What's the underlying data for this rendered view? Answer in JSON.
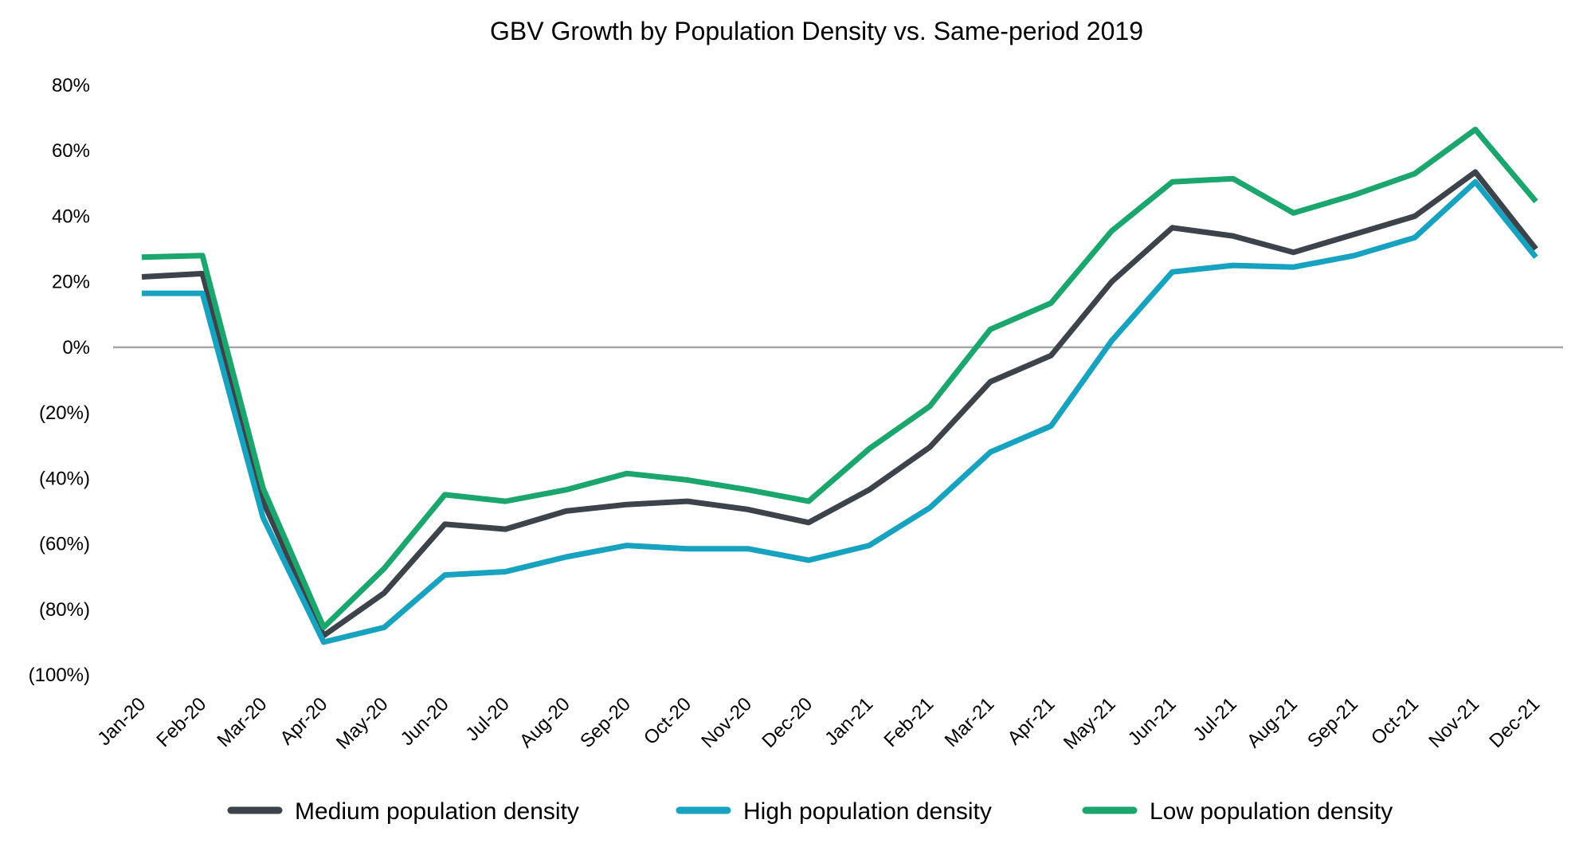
{
  "chart_data": {
    "type": "line",
    "title": "GBV Growth by Population Density vs. Same-period 2019",
    "xlabel": "",
    "ylabel": "",
    "ylim": [
      -100,
      80
    ],
    "yticks": [
      80,
      60,
      40,
      20,
      0,
      -20,
      -40,
      -60,
      -80,
      -100
    ],
    "ytick_labels": [
      "80%",
      "60%",
      "40%",
      "20%",
      "0%",
      "(20%)",
      "(40%)",
      "(60%)",
      "(80%)",
      "(100%)"
    ],
    "grid": false,
    "zero_line": true,
    "legend_position": "bottom",
    "categories": [
      "Jan-20",
      "Feb-20",
      "Mar-20",
      "Apr-20",
      "May-20",
      "Jun-20",
      "Jul-20",
      "Aug-20",
      "Sep-20",
      "Oct-20",
      "Nov-20",
      "Dec-20",
      "Jan-21",
      "Feb-21",
      "Mar-21",
      "Apr-21",
      "May-21",
      "Jun-21",
      "Jul-21",
      "Aug-21",
      "Sep-21",
      "Oct-21",
      "Nov-21",
      "Dec-21"
    ],
    "series": [
      {
        "name": "Medium population density",
        "color": "#3c434b",
        "values": [
          21.5,
          22.5,
          -47,
          -88,
          -75,
          -54,
          -55.5,
          -50,
          -48,
          -47,
          -49.5,
          -53.5,
          -43.5,
          -30.5,
          -10.5,
          -2.5,
          20,
          36.5,
          34,
          29,
          34.5,
          40,
          53.5,
          30
        ]
      },
      {
        "name": "High population density",
        "color": "#17a2c0",
        "values": [
          16.5,
          16.5,
          -52,
          -90,
          -85.5,
          -69.5,
          -68.5,
          -64,
          -60.5,
          -61.5,
          -61.5,
          -65,
          -60.5,
          -49,
          -32,
          -24,
          2,
          23,
          25,
          24.5,
          28,
          33.5,
          50.5,
          27.5
        ]
      },
      {
        "name": "Low population density",
        "color": "#1aa66d",
        "values": [
          27.5,
          28,
          -43,
          -85.5,
          -67.5,
          -45,
          -47,
          -43.5,
          -38.5,
          -40.5,
          -43.5,
          -47,
          -31,
          -18,
          5.5,
          13.5,
          35.5,
          50.5,
          51.5,
          41,
          46.5,
          53,
          66.5,
          44.5
        ]
      }
    ]
  }
}
